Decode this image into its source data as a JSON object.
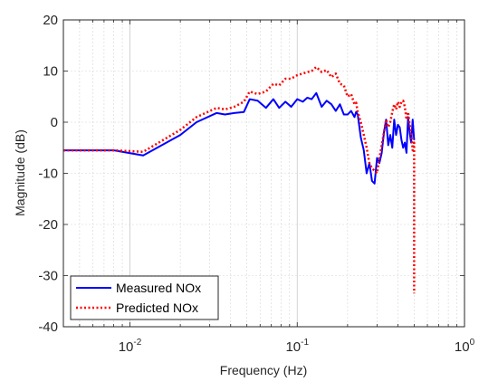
{
  "chart_data": {
    "type": "line",
    "title": "",
    "xlabel": "Frequency (Hz)",
    "ylabel": "Magnitude (dB)",
    "xscale": "log",
    "xlim": [
      0.004,
      1
    ],
    "ylim": [
      -40,
      20
    ],
    "x_ticks": [
      {
        "value": 0.01,
        "base": "10",
        "exp": "-2"
      },
      {
        "value": 0.1,
        "base": "10",
        "exp": "-1"
      },
      {
        "value": 1,
        "base": "10",
        "exp": "0"
      }
    ],
    "y_ticks": [
      20,
      10,
      0,
      -10,
      -20,
      -30,
      -40
    ],
    "grid": "on",
    "legend_position": "bottom-left",
    "series": [
      {
        "name": "Measured NOx",
        "color": "#0000ff",
        "style": "solid",
        "x": [
          0.004,
          0.008,
          0.012,
          0.02,
          0.025,
          0.033,
          0.037,
          0.042,
          0.048,
          0.052,
          0.058,
          0.065,
          0.072,
          0.078,
          0.085,
          0.092,
          0.1,
          0.108,
          0.115,
          0.122,
          0.13,
          0.14,
          0.15,
          0.16,
          0.17,
          0.18,
          0.19,
          0.2,
          0.21,
          0.22,
          0.225,
          0.23,
          0.24,
          0.25,
          0.26,
          0.27,
          0.28,
          0.29,
          0.3,
          0.31,
          0.32,
          0.33,
          0.34,
          0.35,
          0.36,
          0.37,
          0.38,
          0.39,
          0.4,
          0.41,
          0.42,
          0.43,
          0.44,
          0.45,
          0.46,
          0.47,
          0.48,
          0.49,
          0.5
        ],
        "y": [
          -5.5,
          -5.5,
          -6.5,
          -2.5,
          0,
          1.8,
          1.5,
          1.8,
          2,
          4.5,
          4.2,
          2.8,
          4.5,
          2.8,
          4,
          3,
          4.5,
          4,
          4.8,
          4.5,
          5.7,
          3,
          4.2,
          3.5,
          2.2,
          3.5,
          1.5,
          1.5,
          2.2,
          1,
          2,
          1.5,
          -3,
          -5.5,
          -10,
          -8,
          -11.5,
          -12,
          -7,
          -8,
          -6,
          -2,
          0.5,
          -4.5,
          -2.5,
          -5,
          0.5,
          -2.5,
          -0.5,
          -1,
          -3.5,
          -5,
          -4,
          -6,
          1,
          -2,
          -4,
          0.5,
          -3.5
        ]
      },
      {
        "name": "Predicted NOx",
        "color": "#ff0000",
        "style": "dotted",
        "x": [
          0.004,
          0.008,
          0.012,
          0.02,
          0.025,
          0.033,
          0.037,
          0.042,
          0.048,
          0.052,
          0.058,
          0.065,
          0.072,
          0.078,
          0.085,
          0.092,
          0.1,
          0.108,
          0.115,
          0.122,
          0.13,
          0.14,
          0.15,
          0.16,
          0.17,
          0.18,
          0.19,
          0.2,
          0.21,
          0.22,
          0.225,
          0.23,
          0.24,
          0.25,
          0.26,
          0.27,
          0.28,
          0.29,
          0.3,
          0.31,
          0.32,
          0.33,
          0.34,
          0.35,
          0.36,
          0.37,
          0.38,
          0.39,
          0.4,
          0.41,
          0.42,
          0.43,
          0.44,
          0.45,
          0.46,
          0.47,
          0.48,
          0.49,
          0.5,
          0.5,
          0.5
        ],
        "y": [
          -5.5,
          -5.5,
          -5.8,
          -1.5,
          1,
          2.8,
          2.5,
          3,
          4,
          6,
          5.5,
          6,
          7.5,
          7.2,
          8.5,
          8.5,
          9.2,
          9.5,
          9.8,
          10,
          10.8,
          9.8,
          10.2,
          8.8,
          9.5,
          7.5,
          7.2,
          5,
          5.5,
          3.5,
          3.8,
          2,
          0,
          -2.5,
          -5,
          -8,
          -9,
          -9.5,
          -10,
          -7,
          -4.5,
          -2,
          0.5,
          -1,
          0,
          2,
          3.5,
          2.5,
          4,
          3,
          4,
          4.2,
          3,
          0.5,
          2,
          -0.5,
          -2,
          -5.5,
          -4,
          -33.5,
          -33.5
        ]
      }
    ]
  }
}
